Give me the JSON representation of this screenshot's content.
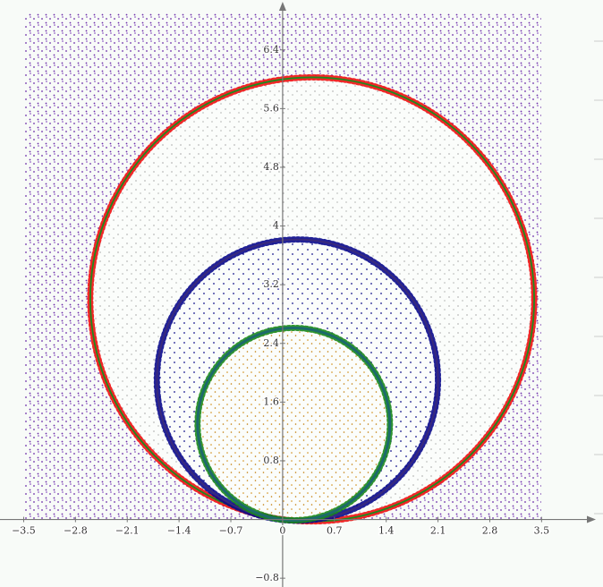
{
  "chart_data": {
    "type": "circles",
    "xlim": [
      -3.82,
      4.33
    ],
    "ylim": [
      -0.92,
      7.08
    ],
    "xticks": [
      {
        "value": -3.5,
        "label": "−3.5"
      },
      {
        "value": -2.8,
        "label": "−2.8"
      },
      {
        "value": -2.1,
        "label": "−2.1"
      },
      {
        "value": -1.4,
        "label": "−1.4"
      },
      {
        "value": -0.7,
        "label": "−0.7"
      },
      0,
      0.7,
      1.4,
      2.1,
      2.8,
      3.5
    ],
    "yticks": [
      {
        "value": -0.8,
        "label": "−0.8"
      },
      0.8,
      1.6,
      2.4,
      3.2,
      4,
      4.8,
      5.6,
      6.4
    ],
    "circles": [
      {
        "cx": 0.4,
        "cy": 3.0,
        "r": 3.0,
        "color": "#1e8a1e",
        "point_color": "#ee1111"
      },
      {
        "cx": 0.2,
        "cy": 1.9,
        "r": 1.9,
        "color": "#3a2a7a",
        "point_color": "#0a0a8c"
      },
      {
        "cx": 0.15,
        "cy": 1.3,
        "r": 1.3,
        "color": "#1d6a6a",
        "point_color": "#1a8a1a"
      }
    ]
  }
}
